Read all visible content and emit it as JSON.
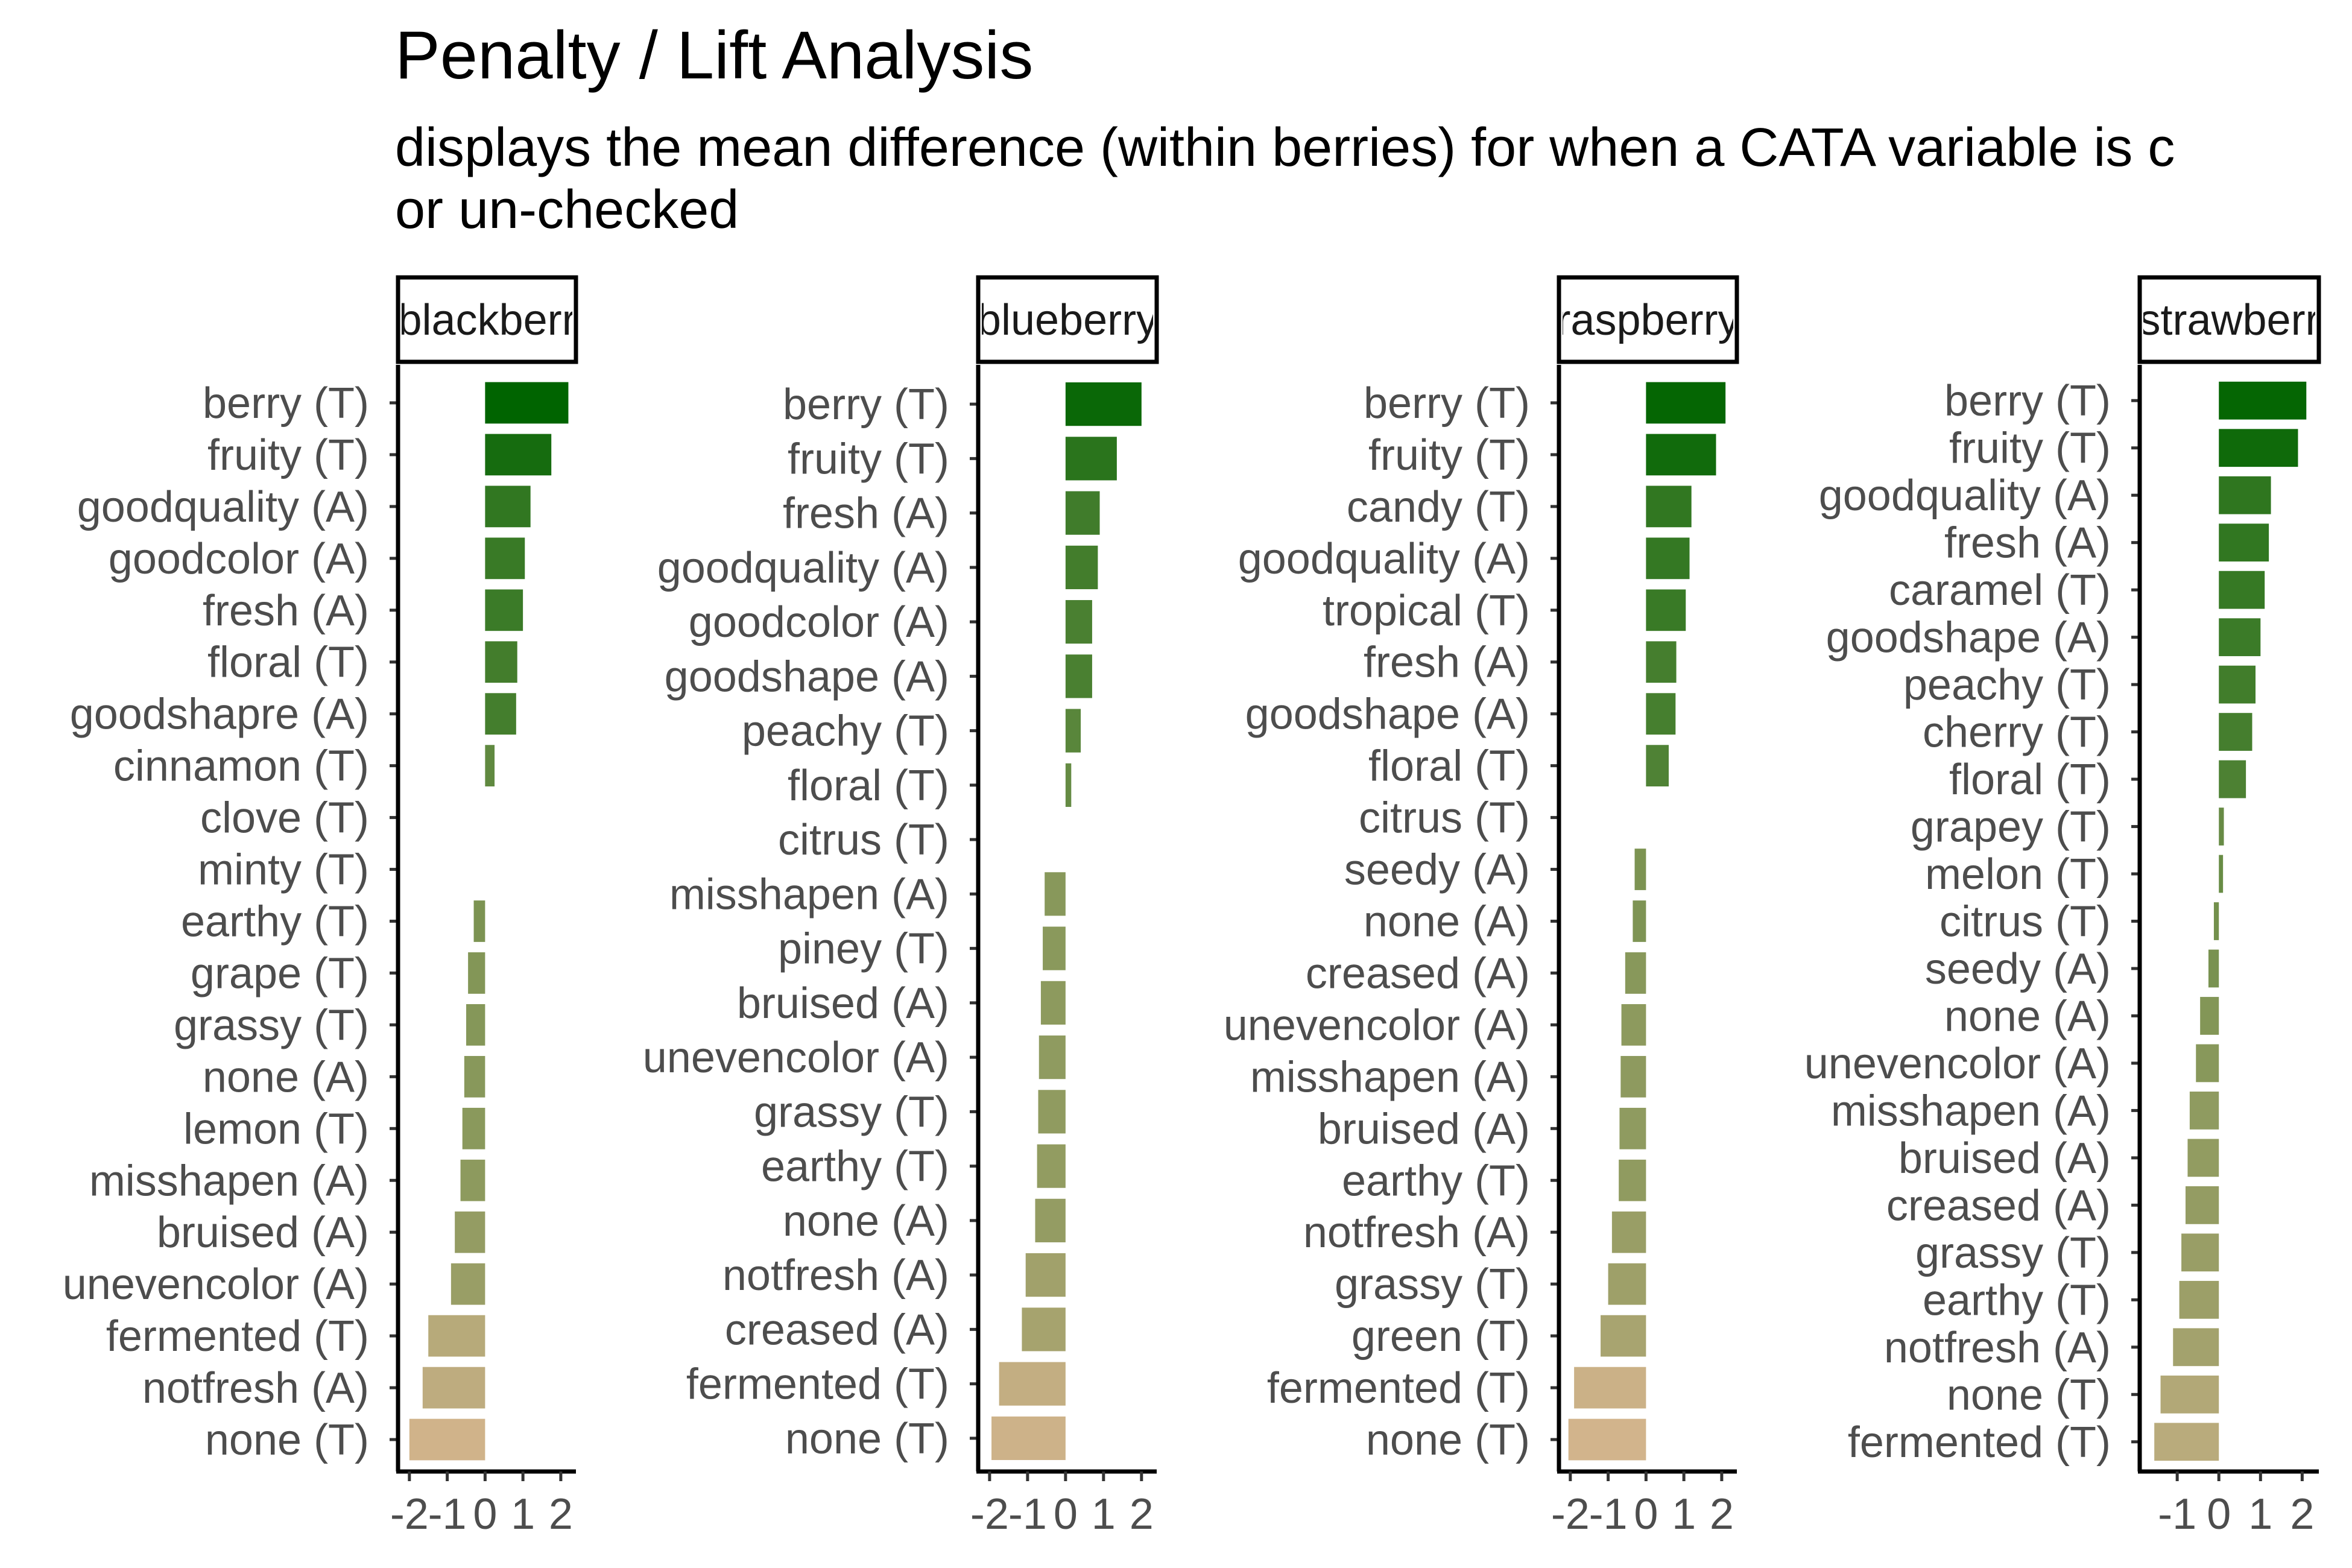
{
  "chart_data": {
    "type": "bar",
    "orientation": "horizontal",
    "title": "Penalty / Lift Analysis",
    "subtitle_lines": [
      "displays the mean difference (within berries) for when a CATA variable is c",
      "or un-checked"
    ],
    "colors": {
      "high": "#006400",
      "low": "#D2B48C"
    },
    "grid": false,
    "legend": "none",
    "panels": [
      {
        "strip": "blackberr",
        "xlim": [
          -2.3,
          2.4
        ],
        "xticks": [
          -2,
          -1,
          0,
          1,
          2
        ],
        "xtick_labels": [
          "-2",
          "-1",
          "0",
          "1",
          "2"
        ],
        "categories": [
          "berry (T)",
          "fruity (T)",
          "goodquality (A)",
          "goodcolor (A)",
          "fresh (A)",
          "floral (T)",
          "goodshapre (A)",
          "cinnamon (T)",
          "clove (T)",
          "minty (T)",
          "earthy (T)",
          "grape (T)",
          "grassy (T)",
          "none (A)",
          "lemon (T)",
          "misshapen (A)",
          "bruised (A)",
          "unevencolor (A)",
          "fermented (T)",
          "notfresh (A)",
          "none (T)"
        ],
        "values": [
          2.2,
          1.75,
          1.2,
          1.05,
          1.0,
          0.85,
          0.82,
          0.25,
          0,
          0,
          -0.3,
          -0.45,
          -0.5,
          -0.55,
          -0.6,
          -0.65,
          -0.8,
          -0.9,
          -1.5,
          -1.65,
          -2.0
        ]
      },
      {
        "strip": "blueberry",
        "xlim": [
          -2.3,
          2.4
        ],
        "xticks": [
          -2,
          -1,
          0,
          1,
          2
        ],
        "xtick_labels": [
          "-2",
          "-1",
          "0",
          "1",
          "2"
        ],
        "categories": [
          "berry (T)",
          "fruity (T)",
          "fresh (A)",
          "goodquality (A)",
          "goodcolor (A)",
          "goodshape (A)",
          "peachy (T)",
          "floral (T)",
          "citrus (T)",
          "misshapen (A)",
          "piney (T)",
          "bruised (A)",
          "unevencolor (A)",
          "grassy (T)",
          "earthy (T)",
          "none (A)",
          "notfresh (A)",
          "creased (A)",
          "fermented (T)",
          "none (T)"
        ],
        "values": [
          2.0,
          1.35,
          0.9,
          0.85,
          0.7,
          0.7,
          0.4,
          0.15,
          0,
          -0.55,
          -0.6,
          -0.65,
          -0.7,
          -0.72,
          -0.75,
          -0.8,
          -1.05,
          -1.15,
          -1.75,
          -1.95
        ]
      },
      {
        "strip": "raspberry",
        "xlim": [
          -2.3,
          2.4
        ],
        "xticks": [
          -2,
          -1,
          0,
          1,
          2
        ],
        "xtick_labels": [
          "-2",
          "-1",
          "0",
          "1",
          "2"
        ],
        "categories": [
          "berry (T)",
          "fruity (T)",
          "candy (T)",
          "goodquality (A)",
          "tropical (T)",
          "fresh (A)",
          "goodshape (A)",
          "floral (T)",
          "citrus (T)",
          "seedy (A)",
          "none (A)",
          "creased (A)",
          "unevencolor (A)",
          "misshapen (A)",
          "bruised (A)",
          "earthy (T)",
          "notfresh (A)",
          "grassy (T)",
          "green (T)",
          "fermented (T)",
          "none (T)"
        ],
        "values": [
          2.1,
          1.85,
          1.2,
          1.15,
          1.05,
          0.8,
          0.78,
          0.6,
          0,
          -0.3,
          -0.35,
          -0.55,
          -0.65,
          -0.67,
          -0.7,
          -0.72,
          -0.9,
          -1.0,
          -1.2,
          -1.9,
          -2.05
        ]
      },
      {
        "strip": "strawberr",
        "xlim": [
          -1.9,
          2.4
        ],
        "xticks": [
          -1,
          0,
          1,
          2
        ],
        "xtick_labels": [
          "-1",
          "0",
          "1",
          "2"
        ],
        "categories": [
          "berry (T)",
          "fruity (T)",
          "goodquality (A)",
          "fresh (A)",
          "caramel (T)",
          "goodshape (A)",
          "peachy (T)",
          "cherry (T)",
          "floral (T)",
          "grapey (T)",
          "melon (T)",
          "citrus (T)",
          "seedy (A)",
          "none (A)",
          "unevencolor (A)",
          "misshapen (A)",
          "bruised (A)",
          "creased (A)",
          "grassy (T)",
          "earthy (T)",
          "notfresh (A)",
          "none (T)",
          "fermented (T)"
        ],
        "values": [
          2.1,
          1.9,
          1.25,
          1.2,
          1.1,
          1.0,
          0.88,
          0.8,
          0.65,
          0.12,
          0.1,
          -0.12,
          -0.25,
          -0.45,
          -0.55,
          -0.7,
          -0.75,
          -0.8,
          -0.9,
          -0.95,
          -1.1,
          -1.4,
          -1.55
        ]
      }
    ]
  }
}
